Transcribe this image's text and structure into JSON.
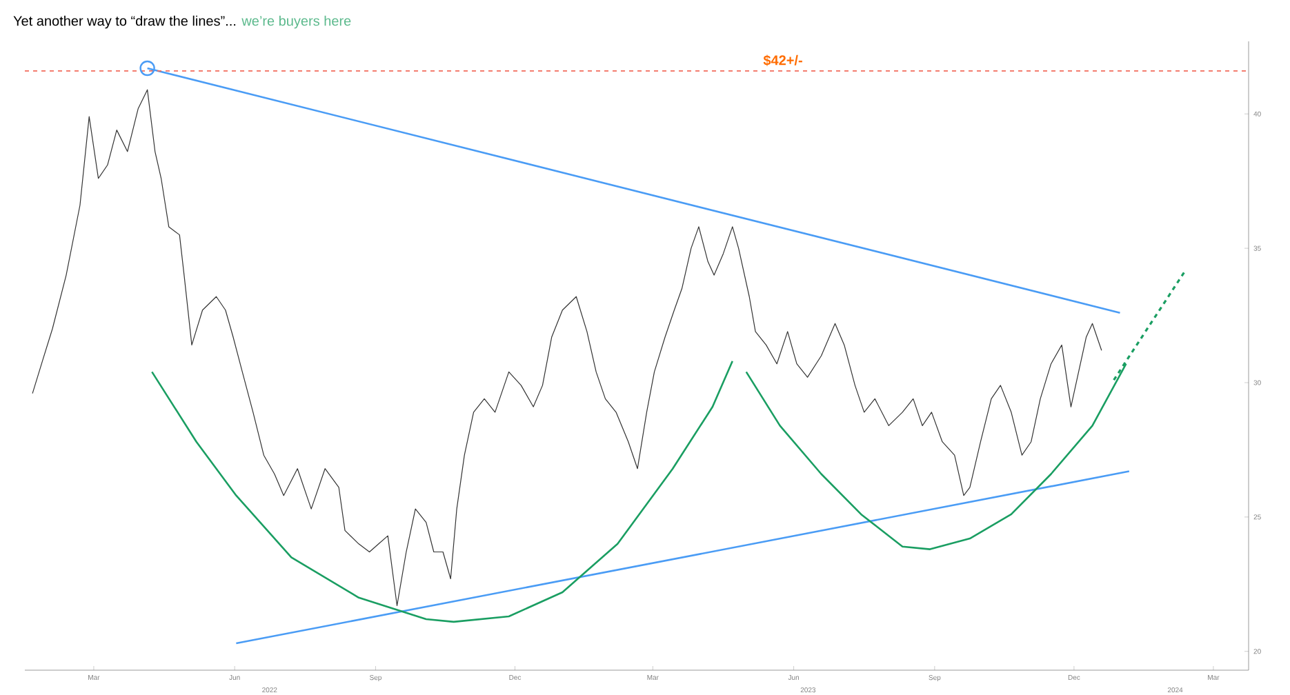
{
  "chart_data": {
    "type": "line",
    "title": "Yet another way to “draw the lines”...",
    "subtitle": "we’re buyers here",
    "xlim": [
      "2022-01-15",
      "2024-03-24"
    ],
    "ylim": [
      19.3,
      42.7
    ],
    "xticks": [
      {
        "value": "2022-03-01",
        "label": "Mar"
      },
      {
        "value": "2022-06-01",
        "label": "Jun"
      },
      {
        "value": "2022-09-01",
        "label": "Sep"
      },
      {
        "value": "2022-12-01",
        "label": "Dec"
      },
      {
        "value": "2023-03-01",
        "label": "Mar"
      },
      {
        "value": "2023-06-01",
        "label": "Jun"
      },
      {
        "value": "2023-09-01",
        "label": "Sep"
      },
      {
        "value": "2023-12-01",
        "label": "Dec"
      },
      {
        "value": "2024-03-01",
        "label": "Mar"
      }
    ],
    "yticks": [
      20,
      25,
      30,
      35,
      40
    ],
    "marker": "none",
    "annotations": [
      "2022",
      "2023",
      "2024"
    ],
    "ref_lines": [
      {
        "axis": "y",
        "value": 41.6,
        "label": "$42+/-",
        "color": "#f26b5b",
        "line_style": "dashed"
      }
    ],
    "series": [
      {
        "color": "#333333",
        "x": [
          "2022-01-20",
          "2022-01-27",
          "2022-02-02",
          "2022-02-11",
          "2022-02-20",
          "2022-02-26",
          "2022-03-04",
          "2022-03-10",
          "2022-03-16",
          "2022-03-23",
          "2022-03-30",
          "2022-04-05",
          "2022-04-10",
          "2022-04-14",
          "2022-04-19",
          "2022-04-26",
          "2022-04-29",
          "2022-05-04",
          "2022-05-11",
          "2022-05-20",
          "2022-05-26",
          "2022-05-31",
          "2022-06-06",
          "2022-06-13",
          "2022-06-20",
          "2022-06-27",
          "2022-07-03",
          "2022-07-12",
          "2022-07-21",
          "2022-07-30",
          "2022-08-08",
          "2022-08-12",
          "2022-08-21",
          "2022-08-28",
          "2022-09-03",
          "2022-09-09",
          "2022-09-15",
          "2022-09-21",
          "2022-09-27",
          "2022-10-04",
          "2022-10-09",
          "2022-10-15",
          "2022-10-20",
          "2022-10-24",
          "2022-10-29",
          "2022-11-04",
          "2022-11-11",
          "2022-11-18",
          "2022-11-27",
          "2022-12-05",
          "2022-12-13",
          "2022-12-19",
          "2022-12-25",
          "2023-01-01",
          "2023-01-10",
          "2023-01-17",
          "2023-01-23",
          "2023-01-29",
          "2023-02-05",
          "2023-02-13",
          "2023-02-19",
          "2023-02-25",
          "2023-03-02",
          "2023-03-09",
          "2023-03-15",
          "2023-03-20",
          "2023-03-26",
          "2023-03-31",
          "2023-04-06",
          "2023-04-10",
          "2023-04-16",
          "2023-04-22",
          "2023-04-26",
          "2023-05-03",
          "2023-05-07",
          "2023-05-14",
          "2023-05-21",
          "2023-05-28",
          "2023-06-03",
          "2023-06-10",
          "2023-06-19",
          "2023-06-28",
          "2023-07-04",
          "2023-07-11",
          "2023-07-17",
          "2023-07-24",
          "2023-08-02",
          "2023-08-11",
          "2023-08-18",
          "2023-08-24",
          "2023-08-30",
          "2023-09-06",
          "2023-09-14",
          "2023-09-20",
          "2023-09-24",
          "2023-10-01",
          "2023-10-08",
          "2023-10-14",
          "2023-10-21",
          "2023-10-28",
          "2023-11-03",
          "2023-11-09",
          "2023-11-16",
          "2023-11-23",
          "2023-11-29",
          "2023-12-04",
          "2023-12-09",
          "2023-12-13",
          "2023-12-19"
        ],
        "values": [
          29.6,
          30.9,
          32,
          34,
          36.6,
          39.9,
          37.6,
          38.1,
          39.4,
          38.6,
          40.2,
          40.9,
          38.6,
          37.6,
          35.8,
          35.5,
          34,
          31.4,
          32.7,
          33.2,
          32.7,
          31.7,
          30.4,
          28.9,
          27.3,
          26.6,
          25.8,
          26.8,
          25.3,
          26.8,
          26.1,
          24.5,
          24,
          23.7,
          24,
          24.3,
          21.7,
          23.7,
          25.3,
          24.8,
          23.7,
          23.7,
          22.7,
          25.3,
          27.3,
          28.9,
          29.4,
          28.9,
          30.4,
          29.9,
          29.1,
          29.9,
          31.7,
          32.7,
          33.2,
          31.9,
          30.4,
          29.4,
          28.9,
          27.8,
          26.8,
          28.9,
          30.4,
          31.7,
          32.7,
          33.5,
          35,
          35.8,
          34.5,
          34,
          34.8,
          35.8,
          35,
          33.2,
          31.9,
          31.4,
          30.7,
          31.9,
          30.7,
          30.2,
          31,
          32.2,
          31.4,
          29.9,
          28.9,
          29.4,
          28.4,
          28.9,
          29.4,
          28.4,
          28.9,
          27.8,
          27.3,
          25.8,
          26.1,
          27.8,
          29.4,
          29.9,
          28.9,
          27.3,
          27.8,
          29.4,
          30.7,
          31.4,
          29.1,
          30.4,
          31.7,
          32.2,
          31.2
        ]
      },
      {
        "color": "#4a9cf5",
        "x": [
          "2022-04-05",
          "2023-12-31"
        ],
        "values": [
          41.7,
          32.6
        ]
      },
      {
        "color": "#4a9cf5",
        "x": [
          "2022-06-02",
          "2024-01-06"
        ],
        "values": [
          20.3,
          26.7
        ]
      },
      {
        "color": "#1a9e62",
        "x": [
          "2022-04-08",
          "2022-05-07",
          "2022-06-02",
          "2022-07-08",
          "2022-08-21",
          "2022-10-04",
          "2022-10-22",
          "2022-11-27",
          "2023-01-01",
          "2023-02-06",
          "2023-03-14",
          "2023-04-09",
          "2023-04-22"
        ],
        "values": [
          30.4,
          27.8,
          25.8,
          23.5,
          22,
          21.2,
          21.1,
          21.3,
          22.2,
          24,
          26.8,
          29.1,
          30.8
        ]
      },
      {
        "color": "#1a9e62",
        "x": [
          "2023-05-01",
          "2023-05-23",
          "2023-06-19",
          "2023-07-15",
          "2023-08-11",
          "2023-08-29",
          "2023-09-24",
          "2023-10-21",
          "2023-11-16",
          "2023-12-13",
          "2024-01-04"
        ],
        "values": [
          30.4,
          28.4,
          26.6,
          25.1,
          23.9,
          23.8,
          24.2,
          25.1,
          26.6,
          28.4,
          30.7
        ]
      },
      {
        "color": "#1a9e62",
        "line_style": "dashed",
        "x": [
          "2023-12-27",
          "2024-02-12"
        ],
        "values": [
          30.1,
          34.2
        ]
      },
      {
        "type": "scatter",
        "marker": "circle",
        "color": "#4a9cf5",
        "x": [
          "2022-04-05"
        ],
        "values": [
          41.7
        ]
      }
    ]
  }
}
